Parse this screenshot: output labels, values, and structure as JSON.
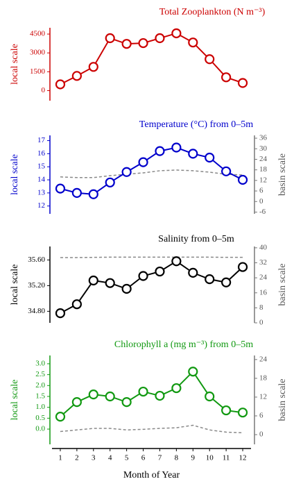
{
  "chart_data": [
    {
      "type": "line",
      "title": "Total Zooplankton (N m⁻³)",
      "title_color": "#cc0000",
      "ylabel": "local scale",
      "x": [
        1,
        2,
        3,
        4,
        5,
        6,
        7,
        8,
        9,
        10,
        11,
        12
      ],
      "series": [
        {
          "color": "#cc0000",
          "values": [
            500,
            1170,
            1890,
            4170,
            3720,
            3780,
            4170,
            4560,
            3830,
            2500,
            1060,
            610
          ]
        }
      ],
      "ylim": [
        -800,
        5000
      ],
      "yticks": [
        0,
        1500,
        3000,
        4500
      ],
      "xlim": [
        0.5,
        12.5
      ]
    },
    {
      "type": "line",
      "title": "Temperature (°C) from 0–5m",
      "title_color": "#0000cc",
      "ylabel": "local scale",
      "y2label": "basin scale",
      "x": [
        1,
        2,
        3,
        4,
        5,
        6,
        7,
        8,
        9,
        10,
        11,
        12
      ],
      "series": [
        {
          "color": "#0000cc",
          "values": [
            13.33,
            13.0,
            12.9,
            13.8,
            14.6,
            15.35,
            16.2,
            16.47,
            16.0,
            15.7,
            14.65,
            14.0
          ]
        },
        {
          "color": "#888888",
          "axis": "y2",
          "dashed": true,
          "values": [
            14,
            13.6,
            13.6,
            14.7,
            15.5,
            16.3,
            17.5,
            17.9,
            17.5,
            16.7,
            15.5,
            15.1
          ]
        }
      ],
      "ylim": [
        11.4,
        17.4
      ],
      "yticks": [
        12,
        13,
        14,
        15,
        16,
        17
      ],
      "y2lim": [
        -7,
        37.6
      ],
      "y2ticks": [
        -6,
        0,
        6,
        12,
        18,
        24,
        30,
        36
      ],
      "xlim": [
        0.5,
        12.5
      ]
    },
    {
      "type": "line",
      "title": "Salinity from 0–5m",
      "title_color": "#000000",
      "ylabel": "local scale",
      "y2label": "basin scale",
      "x": [
        1,
        2,
        3,
        4,
        5,
        6,
        7,
        8,
        9,
        10,
        11,
        12
      ],
      "series": [
        {
          "color": "#000000",
          "values": [
            34.77,
            34.91,
            35.28,
            35.24,
            35.15,
            35.35,
            35.42,
            35.58,
            35.4,
            35.3,
            35.25,
            35.49
          ]
        },
        {
          "color": "#888888",
          "axis": "y2",
          "dashed": true,
          "values": [
            34.8,
            34.8,
            34.9,
            35,
            35,
            35,
            35,
            35,
            35,
            35,
            34.9,
            34.9
          ]
        }
      ],
      "ylim": [
        34.62,
        35.81
      ],
      "yticks": [
        {
          "value": 34.8,
          "label": "34.80"
        },
        {
          "value": 35.2,
          "label": "35.20"
        },
        {
          "value": 35.6,
          "label": "35.60"
        }
      ],
      "y2lim": [
        0,
        40.7
      ],
      "y2ticks": [
        0,
        8,
        16,
        24,
        32,
        40
      ],
      "xlim": [
        0.5,
        12.5
      ]
    },
    {
      "type": "line",
      "title": "Chlorophyll a (mg m⁻³) from 0–5m",
      "title_color": "#119911",
      "ylabel": "local scale",
      "y2label": "basin scale",
      "x": [
        1,
        2,
        3,
        4,
        5,
        6,
        7,
        8,
        9,
        10,
        11,
        12
      ],
      "series": [
        {
          "color": "#119911",
          "values": [
            0.57,
            1.24,
            1.59,
            1.5,
            1.24,
            1.72,
            1.53,
            1.88,
            2.64,
            1.5,
            0.86,
            0.76
          ]
        },
        {
          "color": "#888888",
          "axis": "y2",
          "dashed": true,
          "values": [
            1,
            1.5,
            2,
            2,
            1.5,
            1.7,
            2,
            2.2,
            3,
            1.5,
            0.8,
            0.6
          ]
        }
      ],
      "ylim": [
        -0.7,
        3.38
      ],
      "yticks": [
        {
          "value": 0,
          "label": "0.0"
        },
        0.5,
        {
          "value": 1,
          "label": "1.0"
        },
        1.5,
        {
          "value": 2,
          "label": "2.0"
        },
        2.5,
        {
          "value": 3,
          "label": "3.0"
        }
      ],
      "y2lim": [
        -3.1,
        25.3
      ],
      "y2ticks": [
        0,
        6,
        12,
        18,
        24
      ],
      "xlim": [
        0.5,
        12.5
      ],
      "xticks": [
        1,
        2,
        3,
        4,
        5,
        6,
        7,
        8,
        9,
        10,
        11,
        12
      ],
      "xlabel": "Month of Year"
    }
  ]
}
